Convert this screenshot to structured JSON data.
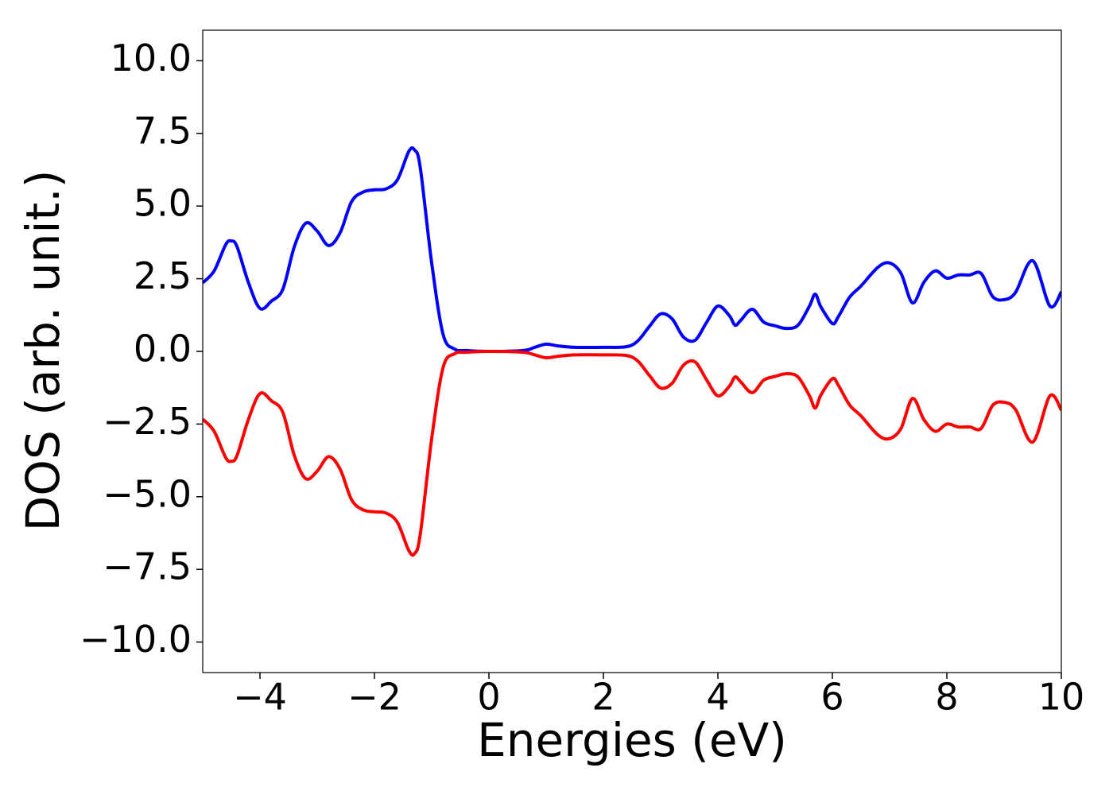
{
  "chart_data": {
    "type": "line",
    "xlabel": "Energies (eV)",
    "ylabel": "DOS (arb. unit.)",
    "x": [
      -5,
      -4.8,
      -4.6,
      -4.5,
      -4.4,
      -4.2,
      -4.0,
      -3.8,
      -3.6,
      -3.4,
      -3.2,
      -3.0,
      -2.8,
      -2.6,
      -2.4,
      -2.2,
      -2.0,
      -1.8,
      -1.6,
      -1.4,
      -1.3,
      -1.2,
      -1.0,
      -0.8,
      -0.6,
      -0.4,
      0,
      0.6,
      0.8,
      1.0,
      1.2,
      1.5,
      2.0,
      2.4,
      2.6,
      2.8,
      3.0,
      3.2,
      3.4,
      3.6,
      3.8,
      4.0,
      4.2,
      4.3,
      4.4,
      4.6,
      4.8,
      5.0,
      5.2,
      5.4,
      5.6,
      5.7,
      5.8,
      6.0,
      6.1,
      6.3,
      6.5,
      6.8,
      7.0,
      7.2,
      7.4,
      7.6,
      7.8,
      8.0,
      8.2,
      8.4,
      8.6,
      8.8,
      9.0,
      9.2,
      9.5,
      9.8,
      10
    ],
    "series": [
      {
        "color": "#0000ff",
        "values": [
          2.36,
          2.77,
          3.67,
          3.8,
          3.6,
          2.36,
          1.48,
          1.73,
          2.14,
          3.6,
          4.41,
          4.14,
          3.64,
          4.08,
          5.15,
          5.48,
          5.56,
          5.59,
          5.9,
          6.88,
          6.93,
          6.33,
          3.04,
          0.58,
          0.08,
          0.03,
          0,
          0.03,
          0.14,
          0.25,
          0.19,
          0.14,
          0.14,
          0.16,
          0.36,
          0.85,
          1.29,
          1.12,
          0.49,
          0.38,
          0.99,
          1.56,
          1.23,
          0.9,
          1.07,
          1.45,
          1.01,
          0.88,
          0.79,
          0.9,
          1.56,
          1.97,
          1.53,
          0.96,
          1.18,
          1.86,
          2.25,
          2.9,
          3.04,
          2.68,
          1.67,
          2.38,
          2.77,
          2.52,
          2.63,
          2.63,
          2.68,
          1.89,
          1.78,
          2.03,
          3.12,
          1.56,
          2.05
        ]
      },
      {
        "color": "#ff0000",
        "values": [
          -2.33,
          -2.75,
          -3.65,
          -3.78,
          -3.58,
          -2.33,
          -1.45,
          -1.7,
          -2.1,
          -3.58,
          -4.38,
          -4.12,
          -3.62,
          -4.05,
          -5.1,
          -5.45,
          -5.52,
          -5.56,
          -5.88,
          -6.85,
          -6.96,
          -6.3,
          -3.0,
          -0.55,
          -0.08,
          -0.03,
          0,
          -0.03,
          -0.12,
          -0.22,
          -0.17,
          -0.12,
          -0.12,
          -0.14,
          -0.33,
          -0.82,
          -1.26,
          -1.1,
          -0.47,
          -0.36,
          -0.97,
          -1.53,
          -1.2,
          -0.88,
          -1.05,
          -1.42,
          -0.99,
          -0.86,
          -0.77,
          -0.88,
          -1.53,
          -1.95,
          -1.5,
          -0.94,
          -1.15,
          -1.84,
          -2.22,
          -2.88,
          -3.0,
          -2.65,
          -1.62,
          -2.35,
          -2.75,
          -2.5,
          -2.6,
          -2.6,
          -2.65,
          -1.86,
          -1.75,
          -2.0,
          -3.12,
          -1.53,
          -2.02
        ]
      }
    ],
    "xlim": [
      -5,
      10
    ],
    "xticks": [
      {
        "value": -4,
        "label": "−4"
      },
      {
        "value": -2,
        "label": "−2"
      },
      0,
      2,
      4,
      6,
      8,
      10
    ],
    "ylim": [
      -11.05,
      11.05
    ],
    "yticks": [
      {
        "value": -10,
        "label": "−10.0"
      },
      {
        "value": -7.5,
        "label": "−7.5"
      },
      {
        "value": -5,
        "label": "−5.0"
      },
      {
        "value": -2.5,
        "label": "−2.5"
      },
      {
        "value": 0,
        "label": "0.0"
      },
      2.5,
      {
        "value": 5,
        "label": "5.0"
      },
      7.5,
      {
        "value": 10,
        "label": "10.0"
      }
    ]
  }
}
